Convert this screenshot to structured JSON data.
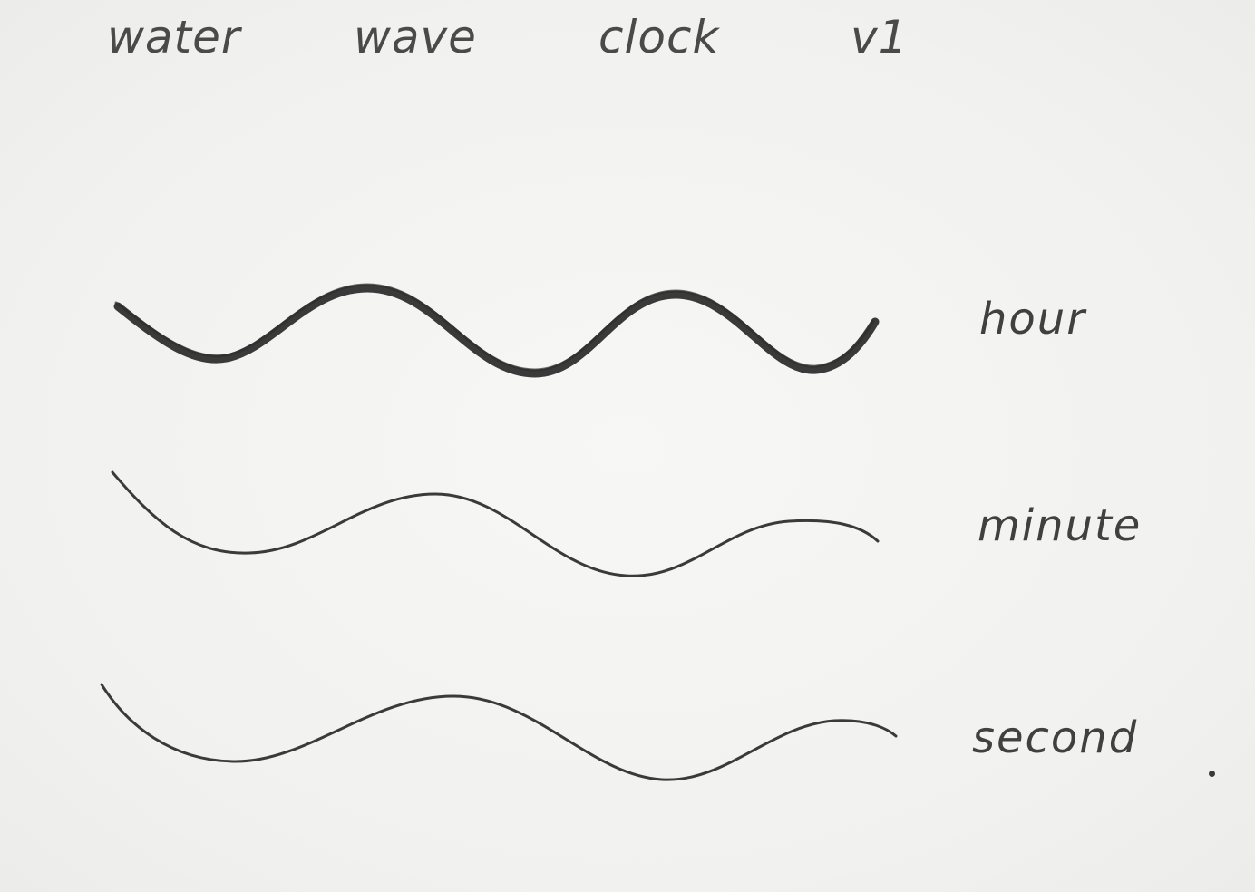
{
  "header": {
    "words": [
      "water",
      "wave",
      "clock",
      "v1"
    ]
  },
  "waves": [
    {
      "label": "hour",
      "stroke": "heavy"
    },
    {
      "label": "minute",
      "stroke": "thin"
    },
    {
      "label": "second",
      "stroke": "thin"
    }
  ],
  "colors": {
    "ink": "#3a3a3a",
    "paper": "#f4f4f2"
  }
}
